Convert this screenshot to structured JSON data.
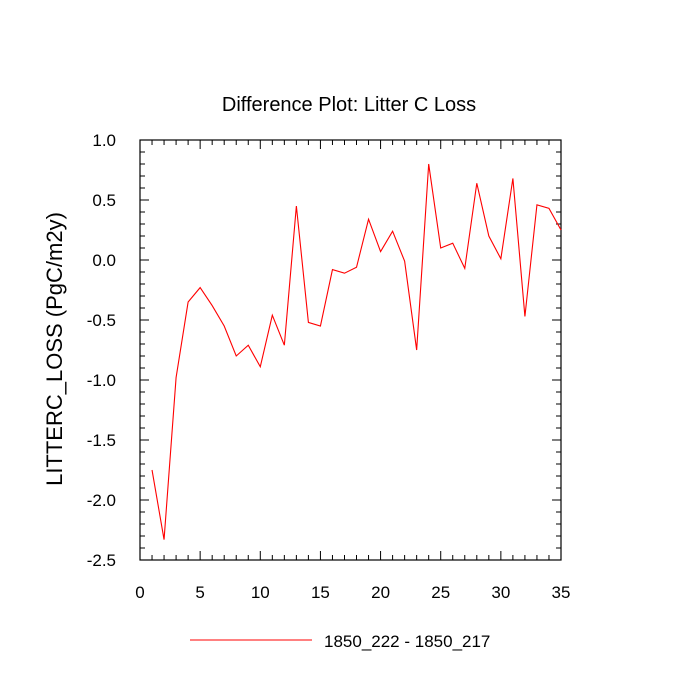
{
  "chart_data": {
    "type": "line",
    "title": "Difference Plot: Litter C Loss",
    "xlabel": "",
    "ylabel": "LITTERC_LOSS  (PgC/m2y)",
    "xlim": [
      0,
      35
    ],
    "ylim": [
      -2.5,
      1.0
    ],
    "xticks": [
      "0",
      "5",
      "10",
      "15",
      "20",
      "25",
      "30",
      "35"
    ],
    "yticks": [
      "-2.5",
      "-2.0",
      "-1.5",
      "-1.0",
      "-0.5",
      "0.0",
      "0.5",
      "1.0"
    ],
    "grid": false,
    "legend_position": "bottom",
    "series": [
      {
        "name": "1850_222 - 1850_217",
        "color": "#ff0000",
        "x": [
          1,
          2,
          3,
          4,
          5,
          6,
          7,
          8,
          9,
          10,
          11,
          12,
          13,
          14,
          15,
          16,
          17,
          18,
          19,
          20,
          21,
          22,
          23,
          24,
          25,
          26,
          27,
          28,
          29,
          30,
          31,
          32,
          33,
          34,
          35
        ],
        "y": [
          -1.75,
          -2.33,
          -0.98,
          -0.35,
          -0.23,
          -0.38,
          -0.55,
          -0.8,
          -0.71,
          -0.89,
          -0.46,
          -0.71,
          0.45,
          -0.52,
          -0.55,
          -0.08,
          -0.11,
          -0.06,
          0.34,
          0.07,
          0.24,
          -0.01,
          -0.75,
          0.8,
          0.1,
          0.14,
          -0.07,
          0.64,
          0.2,
          0.01,
          0.68,
          -0.47,
          0.46,
          0.43,
          0.25
        ]
      }
    ]
  }
}
